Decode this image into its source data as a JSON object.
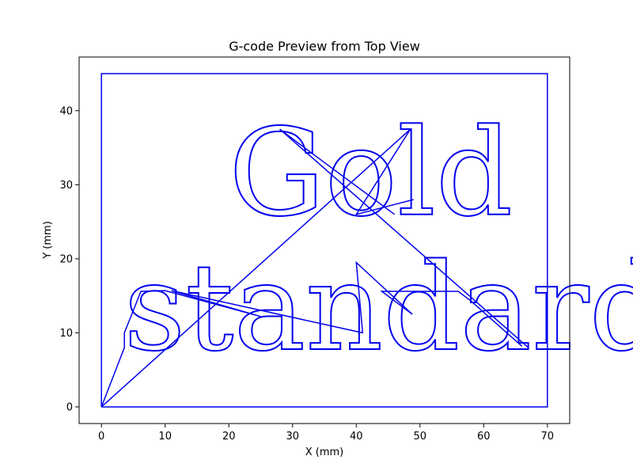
{
  "chart_data": {
    "type": "line",
    "title": "G-code Preview from Top View",
    "xlabel": "X (mm)",
    "ylabel": "Y (mm)",
    "xlim": [
      -3.5,
      73.5
    ],
    "ylim": [
      -2.25,
      47.25
    ],
    "xticks": [
      0,
      10,
      20,
      30,
      40,
      50,
      60,
      70
    ],
    "yticks": [
      0,
      10,
      20,
      30,
      40
    ],
    "grid": false,
    "line_color": "#0000ee",
    "series": [
      {
        "points": [
          [
            0,
            0
          ],
          [
            70,
            0
          ],
          [
            70,
            45
          ],
          [
            0,
            45
          ],
          [
            0,
            0
          ]
        ]
      },
      {
        "points": [
          [
            0,
            0
          ],
          [
            3.6,
            8.0
          ],
          [
            3.6,
            10.0
          ],
          [
            6.2,
            15.6
          ],
          [
            10.0,
            15.7
          ],
          [
            25.0,
            12.2
          ],
          [
            11.0,
            15.7
          ],
          [
            41.0,
            10.0
          ],
          [
            40.0,
            19.5
          ],
          [
            48.8,
            12.5
          ],
          [
            44.0,
            15.6
          ],
          [
            56.0,
            15.6
          ],
          [
            58.0,
            14.3
          ],
          [
            66.0,
            8.2
          ]
        ]
      },
      {
        "points": [
          [
            0,
            0
          ],
          [
            48.5,
            37.5
          ],
          [
            40.0,
            26.0
          ],
          [
            49.0,
            28.0
          ]
        ]
      },
      {
        "points": [
          [
            28.0,
            37.5
          ],
          [
            67.0,
            8.0
          ]
        ]
      },
      {
        "points": [
          [
            28.0,
            37.5
          ],
          [
            35.0,
            33.0
          ],
          [
            46.0,
            26.0
          ]
        ]
      }
    ],
    "text_marks": [
      {
        "text": "Gold",
        "x": 20.0,
        "y": 26.0
      },
      {
        "text": "standard!",
        "x": 3.5,
        "y": 7.8
      }
    ]
  }
}
